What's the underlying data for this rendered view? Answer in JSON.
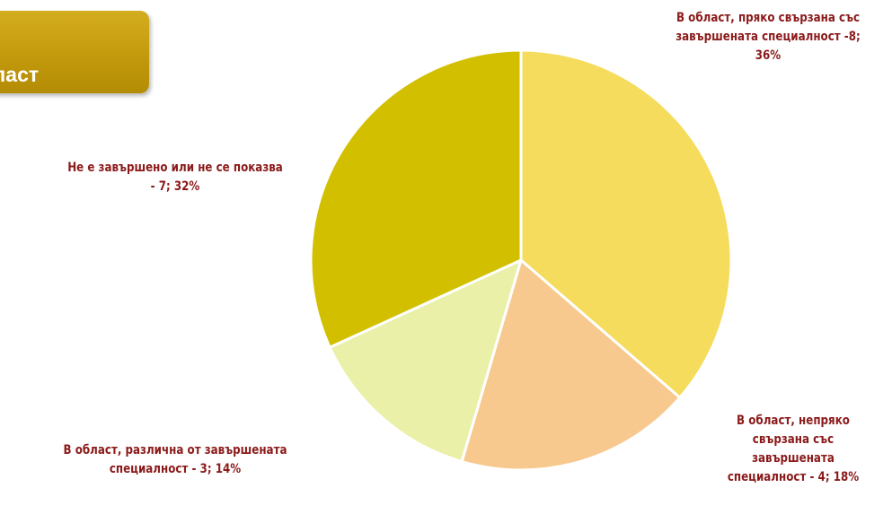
{
  "badge": {
    "text": "област"
  },
  "chart_data": {
    "type": "pie",
    "title": "",
    "slices": [
      {
        "label": "В област, пряко свързана със завършената специалност",
        "value": 8,
        "percent": 36,
        "data_label": "В област, пряко свързана със завършената специалност -8; 36%",
        "color": "#f5dc5c"
      },
      {
        "label": "В област, непряко свързана със завършената специалност",
        "value": 4,
        "percent": 18,
        "data_label": "В област, непряко свързана със завършената специалност - 4; 18%",
        "color": "#f8c98e"
      },
      {
        "label": "В област, различна от завършената специалност",
        "value": 3,
        "percent": 14,
        "data_label": "В област, различна от завършената специалност - 3; 14%",
        "color": "#eaf0a8"
      },
      {
        "label": "Не е завършено или не се показва",
        "value": 7,
        "percent": 32,
        "data_label": "Не е завършено или не се показва - 7; 32%",
        "color": "#d2c000"
      }
    ],
    "legend": "none"
  }
}
